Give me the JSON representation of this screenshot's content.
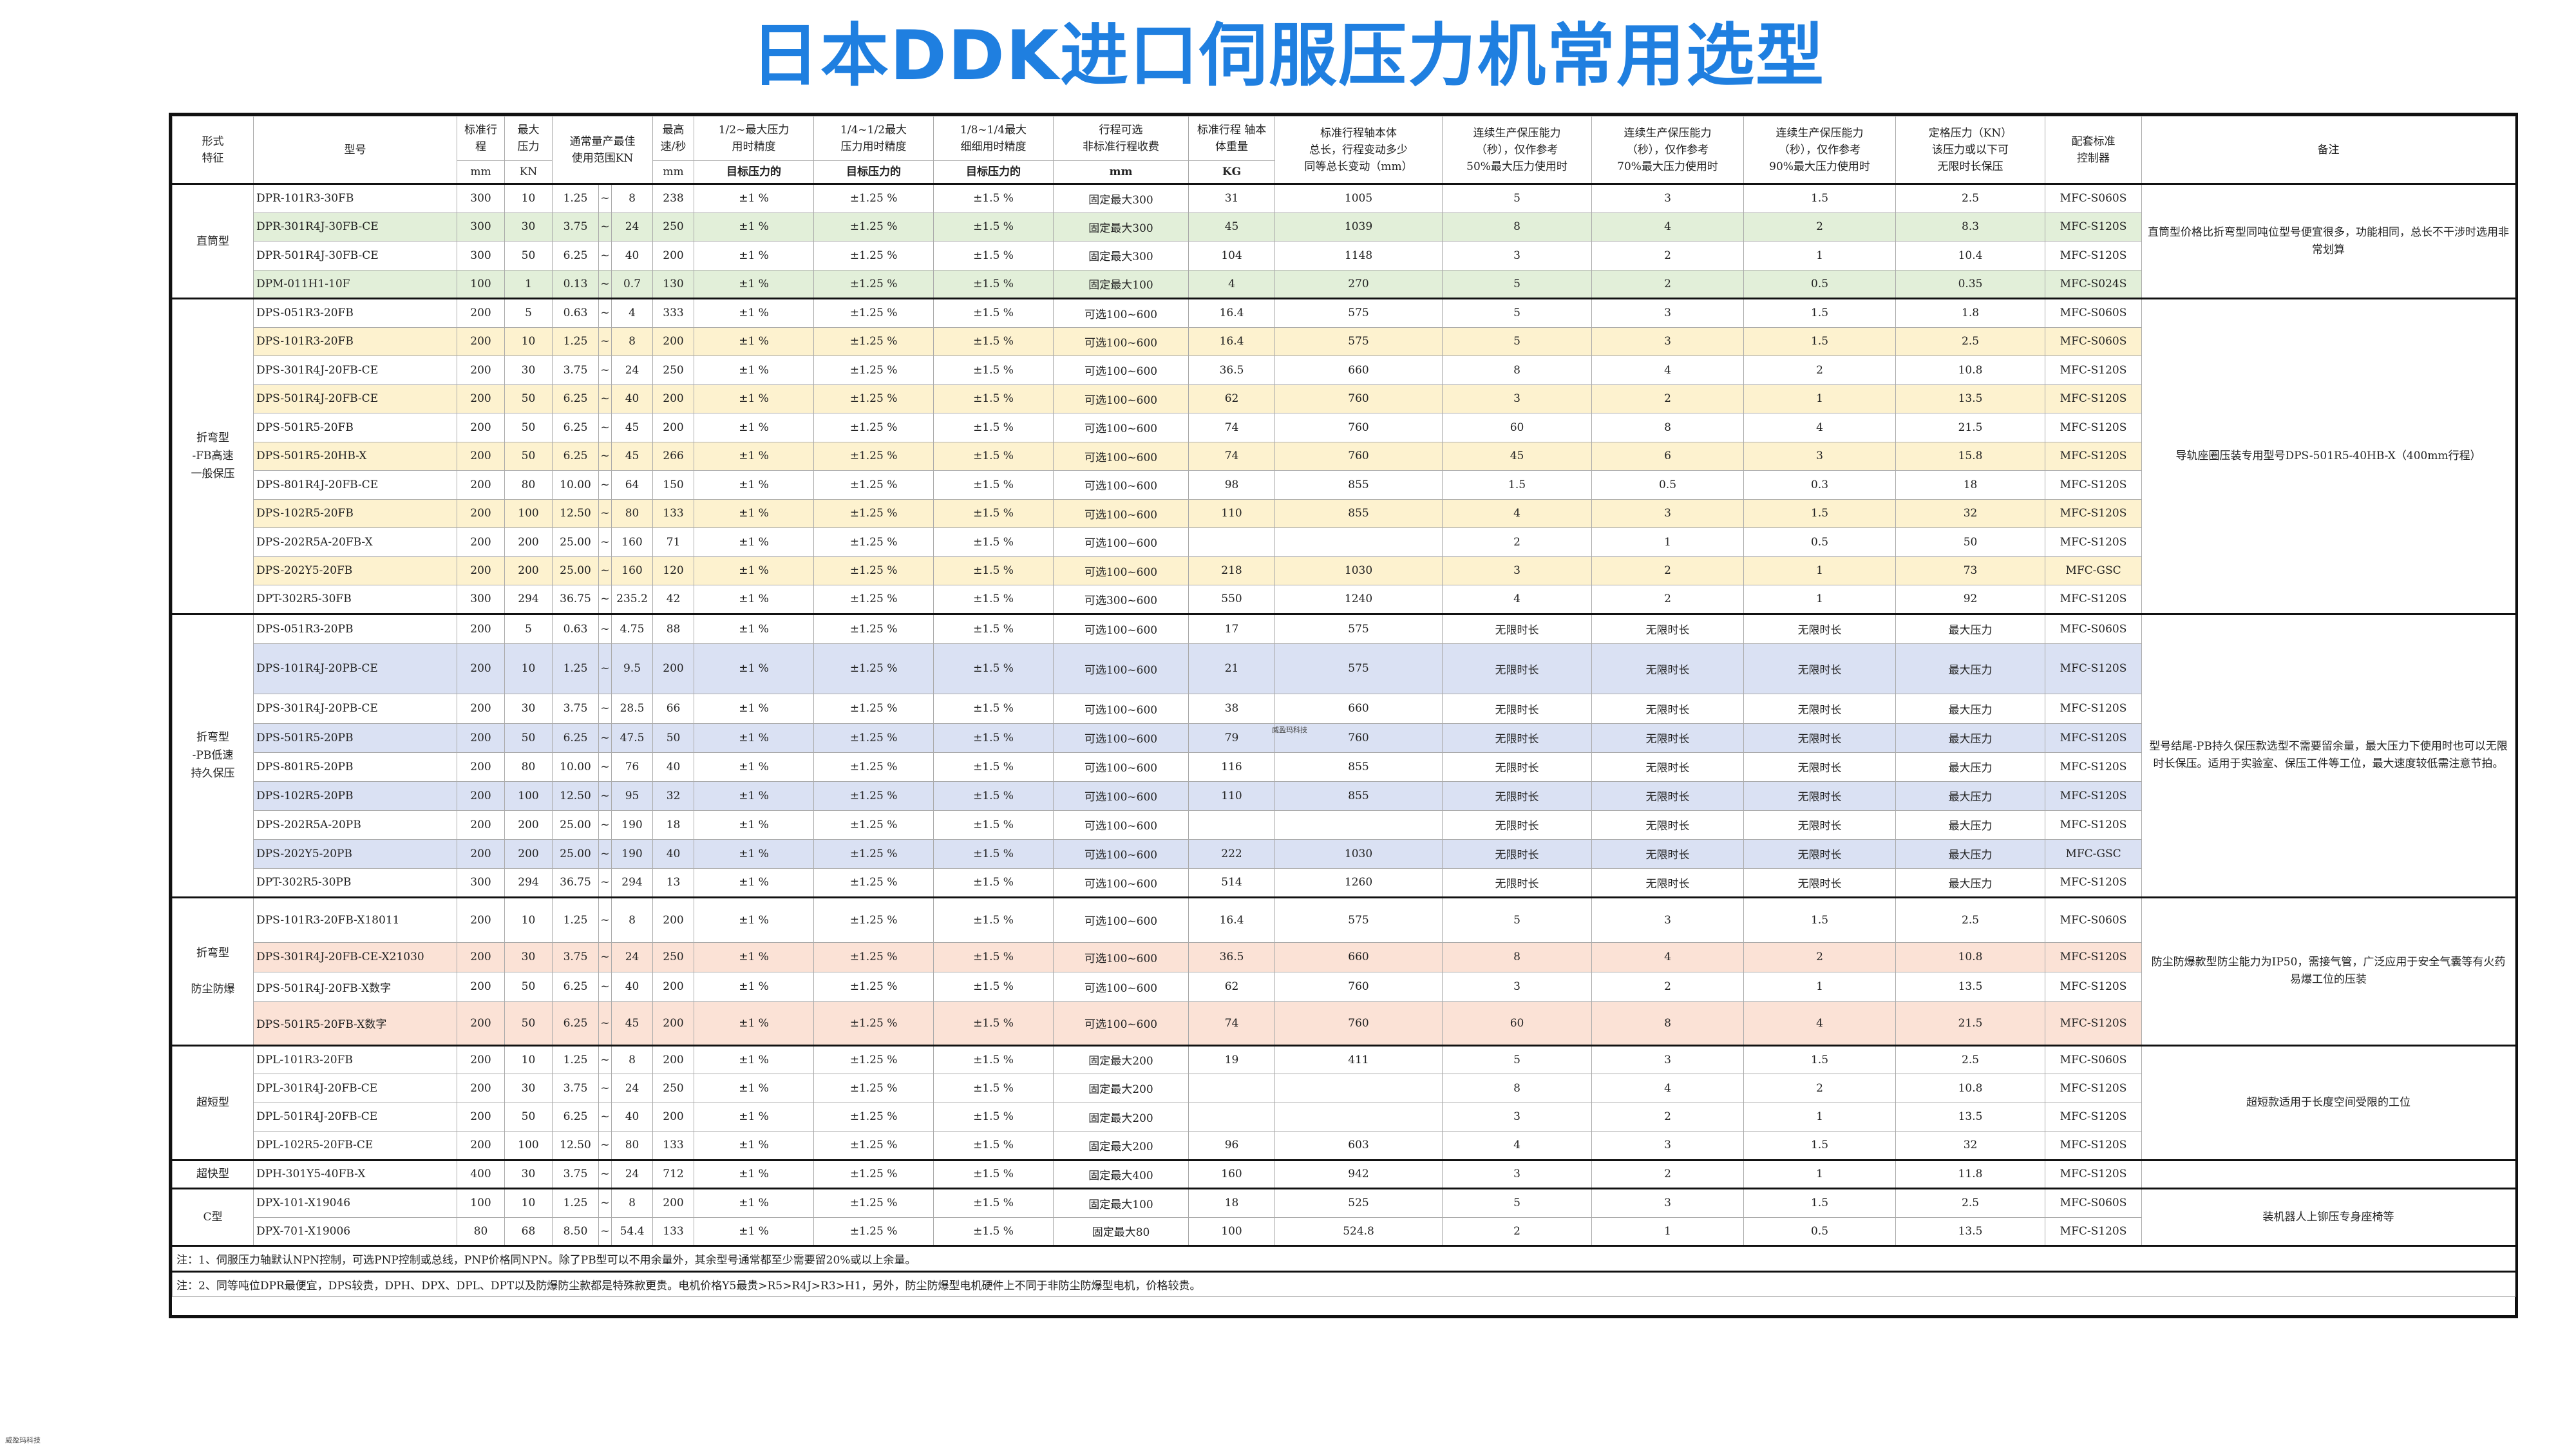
{
  "title": "日本DDK进口伺服压力机常用选型",
  "watermark": "威盈玛科技",
  "headers": {
    "form": "形式\n特征",
    "model": "型号",
    "stroke": "标准行\n程",
    "force": "最大\n压力",
    "range": "通常量产最佳\n使用范围KN",
    "speed": "最高\n速/秒",
    "prec_half": "1/2~最大压力\n用时精度",
    "prec_quarter": "1/4~1/2最大\n压力用时精度",
    "prec_eighth": "1/8~1/4最大\n细细用时精度",
    "stroke_opt": "行程可选\n非标准行程收费",
    "weight": "标准行程 轴本\n体重量",
    "length": "标准行程轴本体\n总长，行程变动多少\n同等总长变动（mm）",
    "cont50": "连续生产保压能力\n（秒），仅作参考\n50%最大压力使用时",
    "cont70": "连续生产保压能力\n（秒），仅作参考\n70%最大压力使用时",
    "cont90": "连续生产保压能力\n（秒），仅作参考\n90%最大压力使用时",
    "rated": "定格压力（KN）\n该压力或以下可\n无限时长保压",
    "ctrl": "配套标准\n控制器",
    "remark": "备注",
    "u_mm": "mm",
    "u_kn": "KN",
    "u_speed": "mm",
    "u_target1": "目标压力的",
    "u_target2": "目标压力的",
    "u_target3": "目标压力的",
    "u_mm2": "mm",
    "u_kg": "KG"
  },
  "groups": [
    {
      "category": "直筒型",
      "note": "直筒型价格比折弯型同吨位型号便宜很多，功能相同，总长不干涉时选用非常划算",
      "rows": [
        {
          "model": "DPR-101R3-30FB",
          "stroke": "300",
          "force": "10",
          "r1": "1.25",
          "r2": "8",
          "speed": "238",
          "p1": "±1 %",
          "p2": "±1.25 %",
          "p3": "±1.5 %",
          "opt": "固定最大300",
          "w": "31",
          "len": "1005",
          "c50": "5",
          "c70": "3",
          "c90": "1.5",
          "rated": "2.5",
          "ctrl": "MFC-S060S",
          "color": ""
        },
        {
          "model": "DPR-301R4J-30FB-CE",
          "stroke": "300",
          "force": "30",
          "r1": "3.75",
          "r2": "24",
          "speed": "250",
          "p1": "±1 %",
          "p2": "±1.25 %",
          "p3": "±1.5 %",
          "opt": "固定最大300",
          "w": "45",
          "len": "1039",
          "c50": "8",
          "c70": "4",
          "c90": "2",
          "rated": "8.3",
          "ctrl": "MFC-S120S",
          "color": "green"
        },
        {
          "model": "DPR-501R4J-30FB-CE",
          "stroke": "300",
          "force": "50",
          "r1": "6.25",
          "r2": "40",
          "speed": "200",
          "p1": "±1 %",
          "p2": "±1.25 %",
          "p3": "±1.5 %",
          "opt": "固定最大300",
          "w": "104",
          "len": "1148",
          "c50": "3",
          "c70": "2",
          "c90": "1",
          "rated": "10.4",
          "ctrl": "MFC-S120S",
          "color": ""
        },
        {
          "model": "DPM-011H1-10F",
          "stroke": "100",
          "force": "1",
          "r1": "0.13",
          "r2": "0.7",
          "speed": "130",
          "p1": "±1 %",
          "p2": "±1.25 %",
          "p3": "±1.5 %",
          "opt": "固定最大100",
          "w": "4",
          "len": "270",
          "c50": "5",
          "c70": "2",
          "c90": "0.5",
          "rated": "0.35",
          "ctrl": "MFC-S024S",
          "color": "green"
        }
      ]
    },
    {
      "category": "折弯型\n-FB高速\n一般保压",
      "note": "导轨座圈压装专用型号DPS-501R5-40HB-X（400mm行程）",
      "rows": [
        {
          "model": "DPS-051R3-20FB",
          "stroke": "200",
          "force": "5",
          "r1": "0.63",
          "r2": "4",
          "speed": "333",
          "p1": "±1 %",
          "p2": "±1.25 %",
          "p3": "±1.5 %",
          "opt": "可选100~600",
          "w": "16.4",
          "len": "575",
          "c50": "5",
          "c70": "3",
          "c90": "1.5",
          "rated": "1.8",
          "ctrl": "MFC-S060S",
          "color": ""
        },
        {
          "model": "DPS-101R3-20FB",
          "stroke": "200",
          "force": "10",
          "r1": "1.25",
          "r2": "8",
          "speed": "200",
          "p1": "±1 %",
          "p2": "±1.25 %",
          "p3": "±1.5 %",
          "opt": "可选100~600",
          "w": "16.4",
          "len": "575",
          "c50": "5",
          "c70": "3",
          "c90": "1.5",
          "rated": "2.5",
          "ctrl": "MFC-S060S",
          "color": "yellow"
        },
        {
          "model": "DPS-301R4J-20FB-CE",
          "stroke": "200",
          "force": "30",
          "r1": "3.75",
          "r2": "24",
          "speed": "250",
          "p1": "±1 %",
          "p2": "±1.25 %",
          "p3": "±1.5 %",
          "opt": "可选100~600",
          "w": "36.5",
          "len": "660",
          "c50": "8",
          "c70": "4",
          "c90": "2",
          "rated": "10.8",
          "ctrl": "MFC-S120S",
          "color": ""
        },
        {
          "model": "DPS-501R4J-20FB-CE",
          "stroke": "200",
          "force": "50",
          "r1": "6.25",
          "r2": "40",
          "speed": "200",
          "p1": "±1 %",
          "p2": "±1.25 %",
          "p3": "±1.5 %",
          "opt": "可选100~600",
          "w": "62",
          "len": "760",
          "c50": "3",
          "c70": "2",
          "c90": "1",
          "rated": "13.5",
          "ctrl": "MFC-S120S",
          "color": "yellow"
        },
        {
          "model": "DPS-501R5-20FB",
          "stroke": "200",
          "force": "50",
          "r1": "6.25",
          "r2": "45",
          "speed": "200",
          "p1": "±1 %",
          "p2": "±1.25 %",
          "p3": "±1.5 %",
          "opt": "可选100~600",
          "w": "74",
          "len": "760",
          "c50": "60",
          "c70": "8",
          "c90": "4",
          "rated": "21.5",
          "ctrl": "MFC-S120S",
          "color": ""
        },
        {
          "model": "DPS-501R5-20HB-X",
          "stroke": "200",
          "force": "50",
          "r1": "6.25",
          "r2": "45",
          "speed": "266",
          "p1": "±1 %",
          "p2": "±1.25 %",
          "p3": "±1.5 %",
          "opt": "可选100~600",
          "w": "74",
          "len": "760",
          "c50": "45",
          "c70": "6",
          "c90": "3",
          "rated": "15.8",
          "ctrl": "MFC-S120S",
          "color": "yellow"
        },
        {
          "model": "DPS-801R4J-20FB-CE",
          "stroke": "200",
          "force": "80",
          "r1": "10.00",
          "r2": "64",
          "speed": "150",
          "p1": "±1 %",
          "p2": "±1.25 %",
          "p3": "±1.5 %",
          "opt": "可选100~600",
          "w": "98",
          "len": "855",
          "c50": "1.5",
          "c70": "0.5",
          "c90": "0.3",
          "rated": "18",
          "ctrl": "MFC-S120S",
          "color": ""
        },
        {
          "model": "DPS-102R5-20FB",
          "stroke": "200",
          "force": "100",
          "r1": "12.50",
          "r2": "80",
          "speed": "133",
          "p1": "±1 %",
          "p2": "±1.25 %",
          "p3": "±1.5 %",
          "opt": "可选100~600",
          "w": "110",
          "len": "855",
          "c50": "4",
          "c70": "3",
          "c90": "1.5",
          "rated": "32",
          "ctrl": "MFC-S120S",
          "color": "yellow"
        },
        {
          "model": "DPS-202R5A-20FB-X",
          "stroke": "200",
          "force": "200",
          "r1": "25.00",
          "r2": "160",
          "speed": "71",
          "p1": "±1 %",
          "p2": "±1.25 %",
          "p3": "±1.5 %",
          "opt": "可选100~600",
          "w": "",
          "len": "",
          "c50": "2",
          "c70": "1",
          "c90": "0.5",
          "rated": "50",
          "ctrl": "MFC-S120S",
          "color": ""
        },
        {
          "model": "DPS-202Y5-20FB",
          "stroke": "200",
          "force": "200",
          "r1": "25.00",
          "r2": "160",
          "speed": "120",
          "p1": "±1 %",
          "p2": "±1.25 %",
          "p3": "±1.5 %",
          "opt": "可选100~600",
          "w": "218",
          "len": "1030",
          "c50": "3",
          "c70": "2",
          "c90": "1",
          "rated": "73",
          "ctrl": "MFC-GSC",
          "color": "yellow"
        },
        {
          "model": "DPT-302R5-30FB",
          "stroke": "300",
          "force": "294",
          "r1": "36.75",
          "r2": "235.2",
          "speed": "42",
          "p1": "±1 %",
          "p2": "±1.25 %",
          "p3": "±1.5 %",
          "opt": "可选300~600",
          "w": "550",
          "len": "1240",
          "c50": "4",
          "c70": "2",
          "c90": "1",
          "rated": "92",
          "ctrl": "MFC-S120S",
          "color": ""
        }
      ]
    },
    {
      "category": "折弯型\n-PB低速\n持久保压",
      "note": "型号结尾-PB持久保压款选型不需要留余量，最大压力下使用时也可以无限时长保压。适用于实验室、保压工件等工位，最大速度较低需注意节拍。",
      "rows": [
        {
          "model": "DPS-051R3-20PB",
          "stroke": "200",
          "force": "5",
          "r1": "0.63",
          "r2": "4.75",
          "speed": "88",
          "p1": "±1 %",
          "p2": "±1.25 %",
          "p3": "±1.5 %",
          "opt": "可选100~600",
          "w": "17",
          "len": "575",
          "c50": "无限时长",
          "c70": "无限时长",
          "c90": "无限时长",
          "rated": "最大压力",
          "ctrl": "MFC-S060S",
          "color": "",
          "h": 46
        },
        {
          "model": "DPS-101R4J-20PB-CE",
          "stroke": "200",
          "force": "10",
          "r1": "1.25",
          "r2": "9.5",
          "speed": "200",
          "p1": "±1 %",
          "p2": "±1.25 %",
          "p3": "±1.5 %",
          "opt": "可选100~600",
          "w": "21",
          "len": "575",
          "c50": "无限时长",
          "c70": "无限时长",
          "c90": "无限时长",
          "rated": "最大压力",
          "ctrl": "MFC-S120S",
          "color": "blue",
          "h": 78
        },
        {
          "model": "DPS-301R4J-20PB-CE",
          "stroke": "200",
          "force": "30",
          "r1": "3.75",
          "r2": "28.5",
          "speed": "66",
          "p1": "±1 %",
          "p2": "±1.25 %",
          "p3": "±1.5 %",
          "opt": "可选100~600",
          "w": "38",
          "len": "660",
          "c50": "无限时长",
          "c70": "无限时长",
          "c90": "无限时长",
          "rated": "最大压力",
          "ctrl": "MFC-S120S",
          "color": "",
          "h": 46
        },
        {
          "model": "DPS-501R5-20PB",
          "stroke": "200",
          "force": "50",
          "r1": "6.25",
          "r2": "47.5",
          "speed": "50",
          "p1": "±1 %",
          "p2": "±1.25 %",
          "p3": "±1.5 %",
          "opt": "可选100~600",
          "w": "79",
          "len": "760",
          "c50": "无限时长",
          "c70": "无限时长",
          "c90": "无限时长",
          "rated": "最大压力",
          "ctrl": "MFC-S120S",
          "color": "blue",
          "h": 45
        },
        {
          "model": "DPS-801R5-20PB",
          "stroke": "200",
          "force": "80",
          "r1": "10.00",
          "r2": "76",
          "speed": "40",
          "p1": "±1 %",
          "p2": "±1.25 %",
          "p3": "±1.5 %",
          "opt": "可选100~600",
          "w": "116",
          "len": "855",
          "c50": "无限时长",
          "c70": "无限时长",
          "c90": "无限时长",
          "rated": "最大压力",
          "ctrl": "MFC-S120S",
          "color": "",
          "h": 45
        },
        {
          "model": "DPS-102R5-20PB",
          "stroke": "200",
          "force": "100",
          "r1": "12.50",
          "r2": "95",
          "speed": "32",
          "p1": "±1 %",
          "p2": "±1.25 %",
          "p3": "±1.5 %",
          "opt": "可选100~600",
          "w": "110",
          "len": "855",
          "c50": "无限时长",
          "c70": "无限时长",
          "c90": "无限时长",
          "rated": "最大压力",
          "ctrl": "MFC-S120S",
          "color": "blue",
          "h": 45
        },
        {
          "model": "DPS-202R5A-20PB",
          "stroke": "200",
          "force": "200",
          "r1": "25.00",
          "r2": "190",
          "speed": "18",
          "p1": "±1 %",
          "p2": "±1.25 %",
          "p3": "±1.5 %",
          "opt": "可选100~600",
          "w": "",
          "len": "",
          "c50": "无限时长",
          "c70": "无限时长",
          "c90": "无限时长",
          "rated": "最大压力",
          "ctrl": "MFC-S120S",
          "color": "",
          "h": 45
        },
        {
          "model": "DPS-202Y5-20PB",
          "stroke": "200",
          "force": "200",
          "r1": "25.00",
          "r2": "190",
          "speed": "40",
          "p1": "±1 %",
          "p2": "±1.25 %",
          "p3": "±1.5 %",
          "opt": "可选100~600",
          "w": "222",
          "len": "1030",
          "c50": "无限时长",
          "c70": "无限时长",
          "c90": "无限时长",
          "rated": "最大压力",
          "ctrl": "MFC-GSC",
          "color": "blue",
          "h": 45
        },
        {
          "model": "DPT-302R5-30PB",
          "stroke": "300",
          "force": "294",
          "r1": "36.75",
          "r2": "294",
          "speed": "13",
          "p1": "±1 %",
          "p2": "±1.25 %",
          "p3": "±1.5 %",
          "opt": "可选100~600",
          "w": "514",
          "len": "1260",
          "c50": "无限时长",
          "c70": "无限时长",
          "c90": "无限时长",
          "rated": "最大压力",
          "ctrl": "MFC-S120S",
          "color": "",
          "h": 45
        }
      ]
    },
    {
      "category": "折弯型\n\n防尘防爆",
      "note": "防尘防爆款型防尘能力为IP50，需接气管，广泛应用于安全气囊等有火药易爆工位的压装",
      "rows": [
        {
          "model": "DPS-101R3-20FB-X18011",
          "stroke": "200",
          "force": "10",
          "r1": "1.25",
          "r2": "8",
          "speed": "200",
          "p1": "±1 %",
          "p2": "±1.25 %",
          "p3": "±1.5 %",
          "opt": "可选100~600",
          "w": "16.4",
          "len": "575",
          "c50": "5",
          "c70": "3",
          "c90": "1.5",
          "rated": "2.5",
          "ctrl": "MFC-S060S",
          "color": "",
          "h": 70
        },
        {
          "model": "DPS-301R4J-20FB-CE-X21030",
          "stroke": "200",
          "force": "30",
          "r1": "3.75",
          "r2": "24",
          "speed": "250",
          "p1": "±1 %",
          "p2": "±1.25 %",
          "p3": "±1.5 %",
          "opt": "可选100~600",
          "w": "36.5",
          "len": "660",
          "c50": "8",
          "c70": "4",
          "c90": "2",
          "rated": "10.8",
          "ctrl": "MFC-S120S",
          "color": "pink",
          "h": 46
        },
        {
          "model": "DPS-501R4J-20FB-X数字",
          "stroke": "200",
          "force": "50",
          "r1": "6.25",
          "r2": "40",
          "speed": "200",
          "p1": "±1 %",
          "p2": "±1.25 %",
          "p3": "±1.5 %",
          "opt": "可选100~600",
          "w": "62",
          "len": "760",
          "c50": "3",
          "c70": "2",
          "c90": "1",
          "rated": "13.5",
          "ctrl": "MFC-S120S",
          "color": "",
          "h": 46
        },
        {
          "model": "DPS-501R5-20FB-X数字",
          "stroke": "200",
          "force": "50",
          "r1": "6.25",
          "r2": "45",
          "speed": "200",
          "p1": "±1 %",
          "p2": "±1.25 %",
          "p3": "±1.5 %",
          "opt": "可选100~600",
          "w": "74",
          "len": "760",
          "c50": "60",
          "c70": "8",
          "c90": "4",
          "rated": "21.5",
          "ctrl": "MFC-S120S",
          "color": "pink",
          "h": 68
        }
      ]
    },
    {
      "category": "超短型",
      "note": "超短款适用于长度空间受限的工位",
      "rows": [
        {
          "model": "DPL-101R3-20FB",
          "stroke": "200",
          "force": "10",
          "r1": "1.25",
          "r2": "8",
          "speed": "200",
          "p1": "±1 %",
          "p2": "±1.25 %",
          "p3": "±1.5 %",
          "opt": "固定最大200",
          "w": "19",
          "len": "411",
          "c50": "5",
          "c70": "3",
          "c90": "1.5",
          "rated": "2.5",
          "ctrl": "MFC-S060S",
          "color": ""
        },
        {
          "model": "DPL-301R4J-20FB-CE",
          "stroke": "200",
          "force": "30",
          "r1": "3.75",
          "r2": "24",
          "speed": "250",
          "p1": "±1 %",
          "p2": "±1.25 %",
          "p3": "±1.5 %",
          "opt": "固定最大200",
          "w": "",
          "len": "",
          "c50": "8",
          "c70": "4",
          "c90": "2",
          "rated": "10.8",
          "ctrl": "MFC-S120S",
          "color": ""
        },
        {
          "model": "DPL-501R4J-20FB-CE",
          "stroke": "200",
          "force": "50",
          "r1": "6.25",
          "r2": "40",
          "speed": "200",
          "p1": "±1 %",
          "p2": "±1.25 %",
          "p3": "±1.5 %",
          "opt": "固定最大200",
          "w": "",
          "len": "",
          "c50": "3",
          "c70": "2",
          "c90": "1",
          "rated": "13.5",
          "ctrl": "MFC-S120S",
          "color": ""
        },
        {
          "model": "DPL-102R5-20FB-CE",
          "stroke": "200",
          "force": "100",
          "r1": "12.50",
          "r2": "80",
          "speed": "133",
          "p1": "±1 %",
          "p2": "±1.25 %",
          "p3": "±1.5 %",
          "opt": "固定最大200",
          "w": "96",
          "len": "603",
          "c50": "4",
          "c70": "3",
          "c90": "1.5",
          "rated": "32",
          "ctrl": "MFC-S120S",
          "color": ""
        }
      ]
    },
    {
      "category": "超快型",
      "note": "",
      "rows": [
        {
          "model": "DPH-301Y5-40FB-X",
          "stroke": "400",
          "force": "30",
          "r1": "3.75",
          "r2": "24",
          "speed": "712",
          "p1": "±1 %",
          "p2": "±1.25 %",
          "p3": "±1.5 %",
          "opt": "固定最大400",
          "w": "160",
          "len": "942",
          "c50": "3",
          "c70": "2",
          "c90": "1",
          "rated": "11.8",
          "ctrl": "MFC-S120S",
          "color": ""
        }
      ]
    },
    {
      "category": "C型",
      "note": "装机器人上铆压专身座椅等",
      "rows": [
        {
          "model": "DPX-101-X19046",
          "stroke": "100",
          "force": "10",
          "r1": "1.25",
          "r2": "8",
          "speed": "200",
          "p1": "±1 %",
          "p2": "±1.25 %",
          "p3": "±1.5 %",
          "opt": "固定最大100",
          "w": "18",
          "len": "525",
          "c50": "5",
          "c70": "3",
          "c90": "1.5",
          "rated": "2.5",
          "ctrl": "MFC-S060S",
          "color": ""
        },
        {
          "model": "DPX-701-X19006",
          "stroke": "80",
          "force": "68",
          "r1": "8.50",
          "r2": "54.4",
          "speed": "133",
          "p1": "±1 %",
          "p2": "±1.25 %",
          "p3": "±1.5 %",
          "opt": "固定最大80",
          "w": "100",
          "len": "524.8",
          "c50": "2",
          "c70": "1",
          "c90": "0.5",
          "rated": "13.5",
          "ctrl": "MFC-S120S",
          "color": ""
        }
      ]
    }
  ],
  "footnotes": [
    "注：1、伺服压力轴默认NPN控制，可选PNP控制或总线，PNP价格同NPN。除了PB型可以不用余量外，其余型号通常都至少需要留20%或以上余量。",
    "注：2、同等吨位DPR最便宜，DPS较贵，DPH、DPX、DPL、DPT以及防爆防尘款都是特殊款更贵。电机价格Y5最贵>R5>R4J>R3>H1，另外，防尘防爆型电机硬件上不同于非防尘防爆型电机，价格较贵。"
  ],
  "colors": {
    "title": "#1f7fe0",
    "green": "#e2efd9",
    "yellow": "#fdf2cf",
    "blue": "#dae1f3",
    "pink": "#fbe2d6"
  }
}
